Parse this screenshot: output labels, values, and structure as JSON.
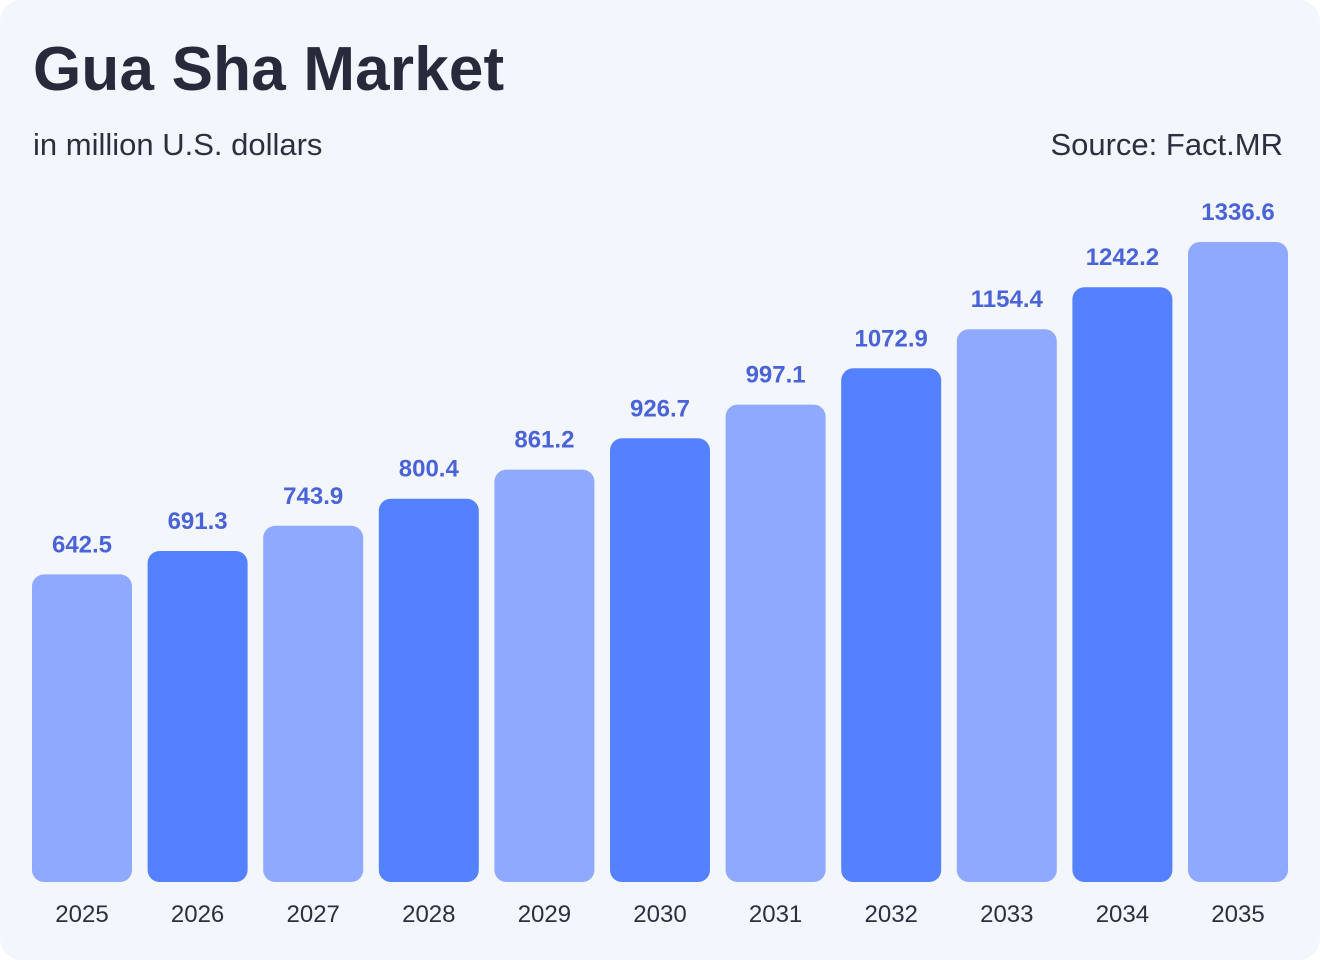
{
  "header": {
    "title": "Gua Sha Market",
    "subtitle": "in million U.S. dollars",
    "source": "Source: Fact.MR"
  },
  "colors": {
    "bar_light": "#8fa9ff",
    "bar_dark": "#5381ff",
    "value_label": "#4a63d6",
    "background": "#f4f6fe"
  },
  "chart_data": {
    "type": "bar",
    "title": "Gua Sha Market",
    "xlabel": "",
    "ylabel": "",
    "categories": [
      "2025",
      "2026",
      "2027",
      "2028",
      "2029",
      "2030",
      "2031",
      "2032",
      "2033",
      "2034",
      "2035"
    ],
    "values": [
      642.5,
      691.3,
      743.9,
      800.4,
      861.2,
      926.7,
      997.1,
      1072.9,
      1154.4,
      1242.2,
      1336.6
    ],
    "value_labels": [
      "642.5",
      "691.3",
      "743.9",
      "800.4",
      "861.2",
      "926.7",
      "997.1",
      "1072.9",
      "1154.4",
      "1242.2",
      "1336.6"
    ],
    "bar_color_pattern": [
      "light",
      "dark",
      "light",
      "dark",
      "light",
      "dark",
      "light",
      "dark",
      "light",
      "dark",
      "light"
    ],
    "ylim": [
      0,
      1336.6
    ],
    "grid": false,
    "legend": "none"
  }
}
